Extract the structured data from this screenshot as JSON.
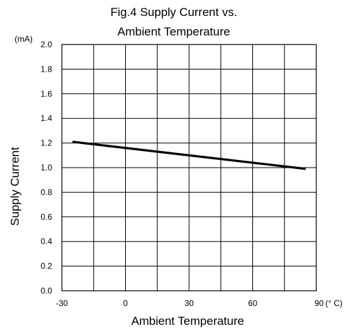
{
  "chart_data": {
    "type": "line",
    "title_lines": [
      "Fig.4 Supply Current vs.",
      "Ambient Temperature"
    ],
    "xlabel": "Ambient Temperature",
    "ylabel": "Supply Current",
    "x_unit": "(° C)",
    "y_unit": "(mA)",
    "xlim": [
      -30,
      90
    ],
    "ylim": [
      0.0,
      2.0
    ],
    "x_ticks": [
      -30,
      0,
      30,
      60,
      90
    ],
    "x_tick_labels": [
      "-30",
      "0",
      "30",
      "60",
      "90"
    ],
    "x_grid_step": 15,
    "y_ticks": [
      0.0,
      0.2,
      0.4,
      0.6,
      0.8,
      1.0,
      1.2,
      1.4,
      1.6,
      1.8,
      2.0
    ],
    "y_tick_labels": [
      "0.0",
      "0.2",
      "0.4",
      "0.6",
      "0.8",
      "1.0",
      "1.2",
      "1.4",
      "1.6",
      "1.8",
      "2.0"
    ],
    "grid": true,
    "series": [
      {
        "x": [
          -25,
          85
        ],
        "y": [
          1.21,
          0.99
        ],
        "color": "#000000"
      }
    ]
  }
}
